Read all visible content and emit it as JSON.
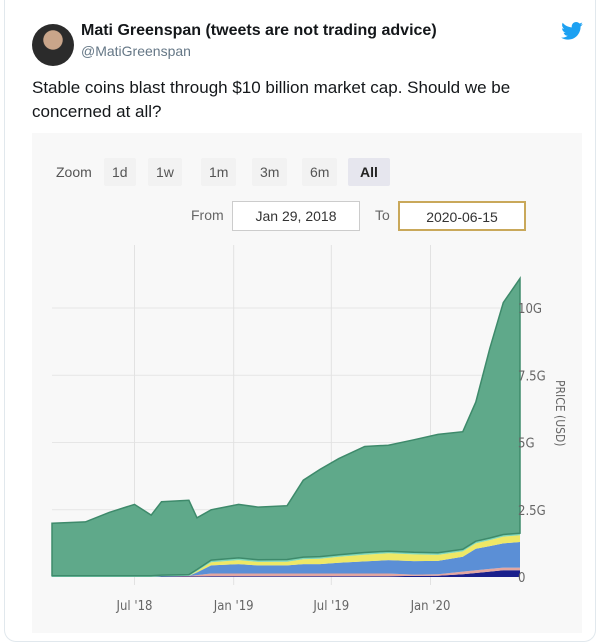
{
  "tweet": {
    "author_name": "Mati Greenspan (tweets are not trading advice)",
    "handle": "@MatiGreenspan",
    "text": "Stable coins blast through $10 billion market cap. Should we be concerned at all?",
    "icon": "twitter-bird-icon",
    "brand_color": "#1da1f2"
  },
  "chart_controls": {
    "zoom_label": "Zoom",
    "zoom_buttons": [
      "1d",
      "1w",
      "1m",
      "3m",
      "6m",
      "All"
    ],
    "active_zoom": "All",
    "from_label": "From",
    "from_value": "Jan 29, 2018",
    "to_label": "To",
    "to_value": "2020-06-15"
  },
  "chart_data": {
    "type": "area",
    "stacked": true,
    "ylabel": "PRICE (USD)",
    "ylim": [
      0,
      11.5
    ],
    "yticks": [
      {
        "v": 0,
        "label": "0"
      },
      {
        "v": 2.5,
        "label": "2.5G"
      },
      {
        "v": 5,
        "label": "5G"
      },
      {
        "v": 7.5,
        "label": "7.5G"
      },
      {
        "v": 10,
        "label": "10G"
      }
    ],
    "xlim": [
      "2018-01-29",
      "2020-06-15"
    ],
    "xticks": [
      {
        "d": "2018-07-01",
        "label": "Jul '18"
      },
      {
        "d": "2019-01-01",
        "label": "Jan '19"
      },
      {
        "d": "2019-07-01",
        "label": "Jul '19"
      },
      {
        "d": "2020-01-01",
        "label": "Jan '20"
      }
    ],
    "grid": true,
    "x": [
      "2018-01-29",
      "2018-04-01",
      "2018-05-15",
      "2018-07-01",
      "2018-08-01",
      "2018-08-20",
      "2018-10-10",
      "2018-10-25",
      "2018-11-20",
      "2019-01-10",
      "2019-02-15",
      "2019-04-10",
      "2019-05-10",
      "2019-06-10",
      "2019-07-15",
      "2019-09-01",
      "2019-10-15",
      "2019-12-01",
      "2020-01-15",
      "2020-03-01",
      "2020-03-25",
      "2020-04-20",
      "2020-05-15",
      "2020-06-15"
    ],
    "series": [
      {
        "color": "#1a1f8c",
        "values": [
          0,
          0,
          0,
          0,
          0,
          0.02,
          0.02,
          0.02,
          0.03,
          0.03,
          0.03,
          0.03,
          0.03,
          0.03,
          0.03,
          0.03,
          0.03,
          0.04,
          0.05,
          0.1,
          0.15,
          0.2,
          0.25,
          0.25
        ]
      },
      {
        "color": "#e3a6a0",
        "values": [
          0,
          0,
          0,
          0,
          0,
          0,
          0.02,
          0.05,
          0.1,
          0.1,
          0.1,
          0.1,
          0.1,
          0.1,
          0.1,
          0.1,
          0.1,
          0.05,
          0.05,
          0.1,
          0.1,
          0.1,
          0.1,
          0.1
        ]
      },
      {
        "color": "#5b8fd6",
        "values": [
          0,
          0,
          0,
          0,
          0,
          0,
          0,
          0.1,
          0.3,
          0.35,
          0.3,
          0.3,
          0.35,
          0.35,
          0.4,
          0.45,
          0.5,
          0.5,
          0.5,
          0.55,
          0.8,
          0.85,
          0.9,
          0.95
        ]
      },
      {
        "color": "#eee866",
        "values": [
          0,
          0,
          0,
          0,
          0,
          0,
          0,
          0.05,
          0.12,
          0.15,
          0.13,
          0.14,
          0.18,
          0.2,
          0.22,
          0.25,
          0.25,
          0.25,
          0.22,
          0.2,
          0.2,
          0.22,
          0.25,
          0.25
        ]
      },
      {
        "color": "#7fd6b8",
        "values": [
          0.05,
          0.05,
          0.05,
          0.05,
          0.05,
          0.05,
          0.05,
          0.06,
          0.08,
          0.08,
          0.08,
          0.08,
          0.08,
          0.08,
          0.08,
          0.08,
          0.08,
          0.08,
          0.08,
          0.08,
          0.08,
          0.08,
          0.08,
          0.08
        ]
      },
      {
        "color": "#5fa98a",
        "values": [
          1.95,
          2.0,
          2.35,
          2.65,
          2.25,
          2.73,
          2.76,
          1.92,
          1.87,
          1.99,
          1.96,
          2.0,
          2.86,
          3.24,
          3.57,
          3.94,
          3.94,
          4.18,
          4.4,
          4.37,
          5.17,
          7.05,
          8.62,
          9.47
        ]
      }
    ]
  }
}
